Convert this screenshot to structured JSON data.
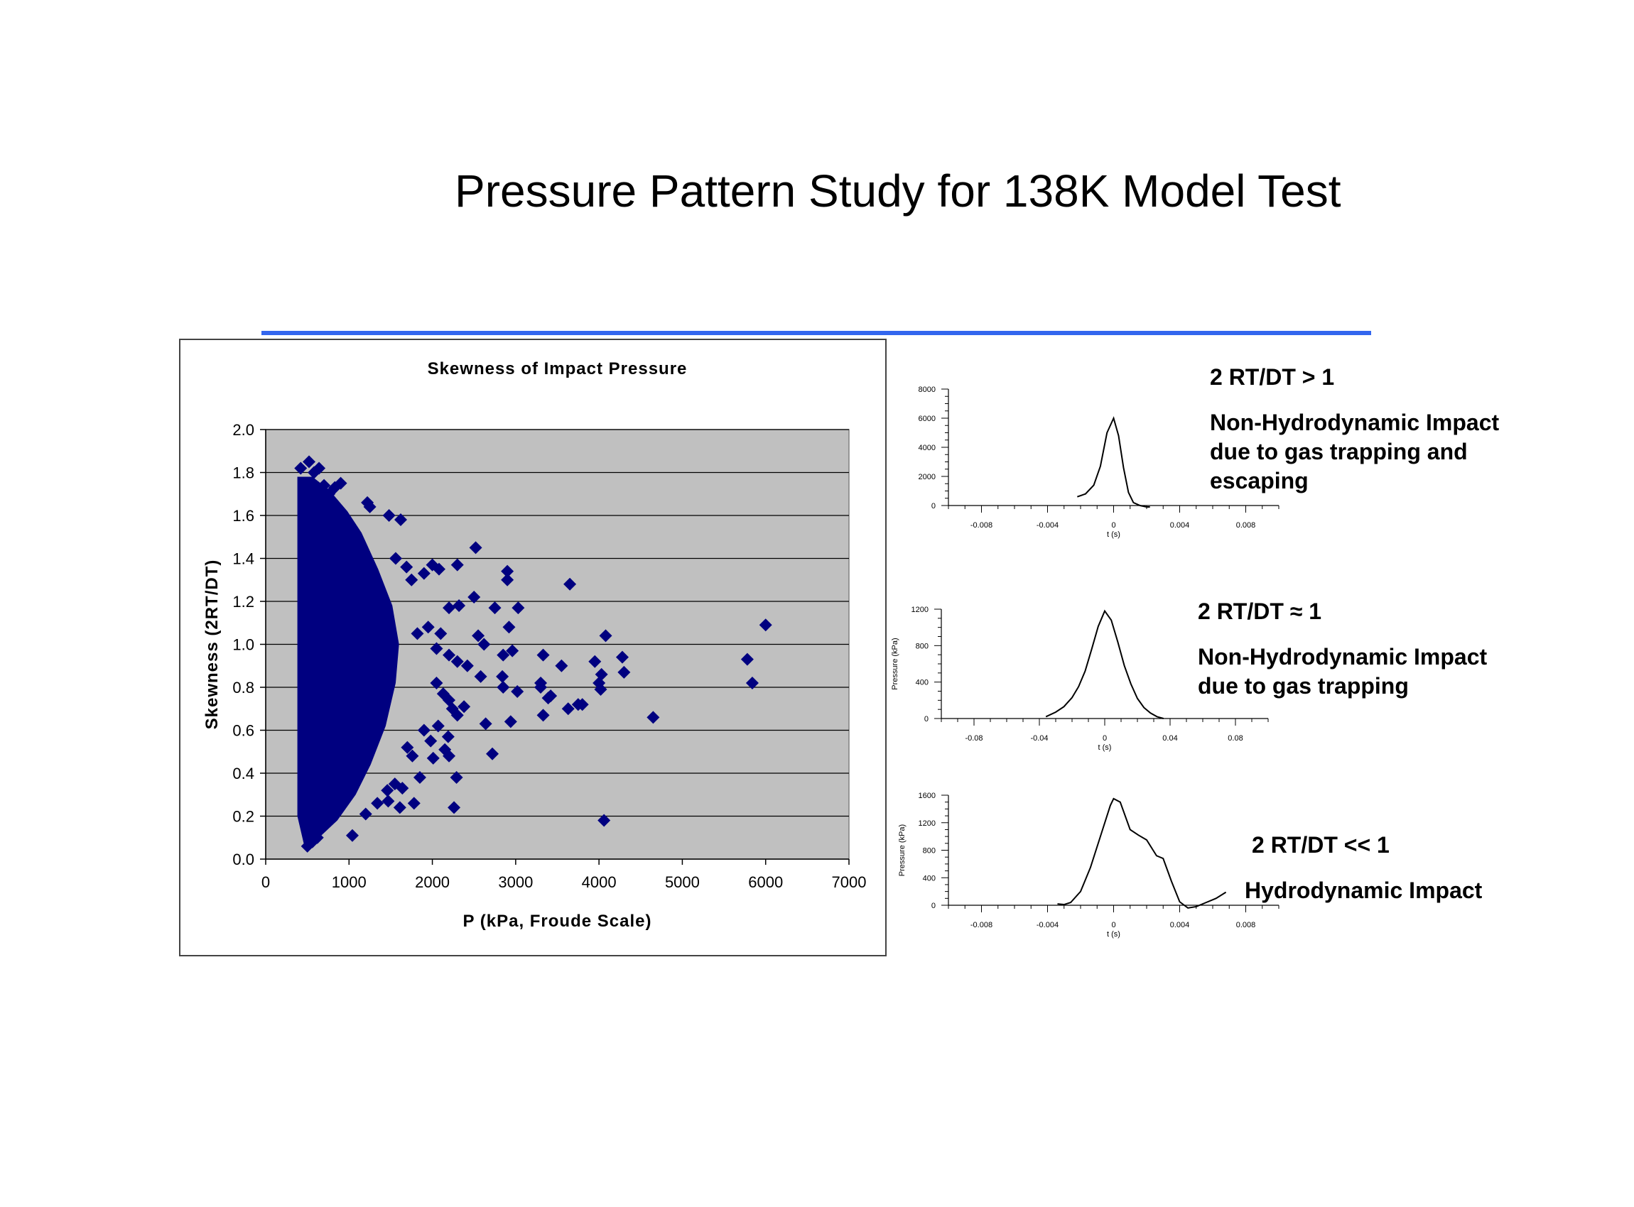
{
  "slide": {
    "title": "Pressure Pattern Study for 138K Model Test",
    "rule_color": "#3366ee"
  },
  "colors": {
    "marker": "#000080",
    "plot_bg": "#c0c0c0",
    "grid": "#000000",
    "curve": "#000000"
  },
  "annotations": [
    {
      "title": "2 RT/DT > 1",
      "body": "Non-Hydrodynamic Impact\ndue to gas trapping and\nescaping"
    },
    {
      "title": "2 RT/DT ≈ 1",
      "body": "Non-Hydrodynamic Impact\ndue to gas trapping"
    },
    {
      "title": "2 RT/DT << 1",
      "body": "Hydrodynamic Impact"
    }
  ],
  "chart_data": [
    {
      "type": "scatter",
      "title": "Skewness of Impact Pressure",
      "xlabel": "P (kPa, Froude Scale)",
      "ylabel": "Skewness (2RT/DT)",
      "xlim": [
        0,
        7000
      ],
      "ylim": [
        0,
        2.0
      ],
      "xticks": [
        "0",
        "1000",
        "2000",
        "3000",
        "4000",
        "5000",
        "6000",
        "7000"
      ],
      "yticks": [
        "0.0",
        "0.2",
        "0.4",
        "0.6",
        "0.8",
        "1.0",
        "1.2",
        "1.4",
        "1.6",
        "1.8",
        "2.0"
      ],
      "grid": "horizontal",
      "marker": "diamond",
      "points": [
        [
          420,
          1.82
        ],
        [
          470,
          1.72
        ],
        [
          520,
          1.85
        ],
        [
          580,
          1.8
        ],
        [
          640,
          1.82
        ],
        [
          700,
          1.74
        ],
        [
          760,
          1.7
        ],
        [
          830,
          1.73
        ],
        [
          900,
          1.75
        ],
        [
          1220,
          1.66
        ],
        [
          1250,
          1.64
        ],
        [
          1480,
          1.6
        ],
        [
          1620,
          1.58
        ],
        [
          2520,
          1.45
        ],
        [
          2900,
          1.34
        ],
        [
          2900,
          1.3
        ],
        [
          3650,
          1.28
        ],
        [
          2000,
          1.37
        ],
        [
          2080,
          1.35
        ],
        [
          2300,
          1.37
        ],
        [
          1900,
          1.33
        ],
        [
          1750,
          1.3
        ],
        [
          1560,
          1.4
        ],
        [
          1690,
          1.36
        ],
        [
          2200,
          1.17
        ],
        [
          2320,
          1.18
        ],
        [
          2500,
          1.22
        ],
        [
          2750,
          1.17
        ],
        [
          3030,
          1.17
        ],
        [
          2920,
          1.08
        ],
        [
          2550,
          1.04
        ],
        [
          2620,
          1.0
        ],
        [
          1820,
          1.05
        ],
        [
          1950,
          1.08
        ],
        [
          2100,
          1.05
        ],
        [
          2050,
          0.98
        ],
        [
          2200,
          0.95
        ],
        [
          2300,
          0.92
        ],
        [
          2420,
          0.9
        ],
        [
          2850,
          0.95
        ],
        [
          2960,
          0.97
        ],
        [
          3330,
          0.95
        ],
        [
          4280,
          0.94
        ],
        [
          4080,
          1.04
        ],
        [
          6000,
          1.09
        ],
        [
          5780,
          0.93
        ],
        [
          5840,
          0.82
        ],
        [
          2580,
          0.85
        ],
        [
          2840,
          0.85
        ],
        [
          3550,
          0.9
        ],
        [
          3950,
          0.92
        ],
        [
          4030,
          0.86
        ],
        [
          4300,
          0.87
        ],
        [
          4000,
          0.82
        ],
        [
          4020,
          0.79
        ],
        [
          3300,
          0.82
        ],
        [
          3390,
          0.75
        ],
        [
          3420,
          0.76
        ],
        [
          3300,
          0.8
        ],
        [
          3020,
          0.78
        ],
        [
          2850,
          0.8
        ],
        [
          3330,
          0.67
        ],
        [
          3750,
          0.72
        ],
        [
          3630,
          0.7
        ],
        [
          3800,
          0.72
        ],
        [
          4650,
          0.66
        ],
        [
          4060,
          0.18
        ],
        [
          2050,
          0.82
        ],
        [
          2130,
          0.77
        ],
        [
          2200,
          0.74
        ],
        [
          2240,
          0.7
        ],
        [
          2300,
          0.67
        ],
        [
          2380,
          0.71
        ],
        [
          2640,
          0.63
        ],
        [
          2940,
          0.64
        ],
        [
          2190,
          0.57
        ],
        [
          1980,
          0.55
        ],
        [
          1900,
          0.6
        ],
        [
          2070,
          0.62
        ],
        [
          2150,
          0.51
        ],
        [
          2200,
          0.48
        ],
        [
          2720,
          0.49
        ],
        [
          1700,
          0.52
        ],
        [
          1760,
          0.48
        ],
        [
          1850,
          0.38
        ],
        [
          2010,
          0.47
        ],
        [
          2290,
          0.38
        ],
        [
          1550,
          0.35
        ],
        [
          1640,
          0.33
        ],
        [
          1470,
          0.27
        ],
        [
          1610,
          0.24
        ],
        [
          1780,
          0.26
        ],
        [
          2260,
          0.24
        ],
        [
          1460,
          0.32
        ],
        [
          1340,
          0.26
        ],
        [
          1200,
          0.21
        ],
        [
          1040,
          0.11
        ],
        [
          500,
          0.06
        ],
        [
          560,
          0.08
        ],
        [
          620,
          0.1
        ]
      ]
    },
    {
      "type": "line",
      "xlabel": "t (s)",
      "ylabel": "",
      "xlim": [
        -0.01,
        0.01
      ],
      "ylim": [
        0,
        8000
      ],
      "xticks": [
        "-0.008",
        "-0.004",
        "0",
        "0.004",
        "0.008"
      ],
      "yticks": [
        "0",
        "2000",
        "4000",
        "6000",
        "8000"
      ],
      "x": [
        -0.0022,
        -0.0017,
        -0.0012,
        -0.0008,
        -0.0004,
        0,
        0.0003,
        0.0006,
        0.0009,
        0.0012,
        0.0016,
        0.002,
        0.0022
      ],
      "y": [
        600,
        800,
        1400,
        2700,
        5000,
        6000,
        4800,
        2600,
        900,
        200,
        0,
        -100,
        -100
      ]
    },
    {
      "type": "line",
      "xlabel": "t (s)",
      "ylabel": "Pressure (kPa)",
      "xlim": [
        -0.1,
        0.1
      ],
      "ylim": [
        0,
        1200
      ],
      "xticks": [
        "-0.08",
        "-0.04",
        "0",
        "0.04",
        "0.08"
      ],
      "yticks": [
        "0",
        "400",
        "800",
        "1200"
      ],
      "x": [
        -0.036,
        -0.03,
        -0.025,
        -0.02,
        -0.016,
        -0.012,
        -0.008,
        -0.004,
        0,
        0.004,
        0.008,
        0.012,
        0.016,
        0.02,
        0.024,
        0.028,
        0.032,
        0.036
      ],
      "y": [
        20,
        70,
        130,
        230,
        350,
        520,
        760,
        1010,
        1180,
        1080,
        840,
        580,
        380,
        220,
        120,
        60,
        20,
        0
      ]
    },
    {
      "type": "line",
      "xlabel": "t (s)",
      "ylabel": "Pressure (kPa)",
      "xlim": [
        -0.01,
        0.01
      ],
      "ylim": [
        0,
        1600
      ],
      "xticks": [
        "-0.008",
        "-0.004",
        "0",
        "0.004",
        "0.008"
      ],
      "yticks": [
        "0",
        "400",
        "800",
        "1200",
        "1600"
      ],
      "x": [
        -0.0034,
        -0.003,
        -0.0026,
        -0.002,
        -0.0014,
        -0.0008,
        -0.0002,
        0,
        0.0004,
        0.001,
        0.0015,
        0.002,
        0.0026,
        0.003,
        0.0035,
        0.004,
        0.0045,
        0.005,
        0.0056,
        0.0062,
        0.0068
      ],
      "y": [
        20,
        10,
        40,
        200,
        550,
        1000,
        1450,
        1550,
        1500,
        1100,
        1020,
        950,
        720,
        680,
        350,
        50,
        -40,
        -20,
        40,
        100,
        190
      ]
    }
  ]
}
